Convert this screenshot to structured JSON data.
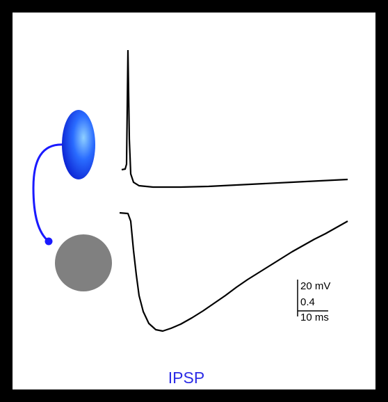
{
  "scale_bar": {
    "voltage": "20 mV",
    "ratio": "0.4",
    "time": "10 ms"
  },
  "caption": "IPSP"
}
